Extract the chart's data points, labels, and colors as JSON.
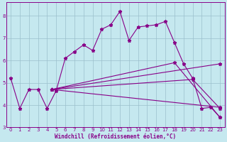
{
  "title": "",
  "xlabel": "Windchill (Refroidissement éolien,°C)",
  "ylabel": "",
  "bg_color": "#c5e8ef",
  "line_color": "#880088",
  "grid_color": "#9bbfcc",
  "xlim": [
    -0.5,
    23.5
  ],
  "ylim": [
    3.0,
    8.6
  ],
  "yticks": [
    3,
    4,
    5,
    6,
    7,
    8
  ],
  "xticks": [
    0,
    1,
    2,
    3,
    4,
    5,
    6,
    7,
    8,
    9,
    10,
    11,
    12,
    13,
    14,
    15,
    16,
    17,
    18,
    19,
    20,
    21,
    22,
    23
  ],
  "lines": [
    {
      "x": [
        0,
        1,
        2,
        3,
        4,
        5,
        6,
        7,
        8,
        9,
        10,
        11,
        12,
        13,
        14,
        15,
        16,
        17,
        18,
        19,
        20,
        21,
        22,
        23
      ],
      "y": [
        5.2,
        3.85,
        4.7,
        4.7,
        3.85,
        4.65,
        6.1,
        6.4,
        6.7,
        6.45,
        7.4,
        7.6,
        8.2,
        6.9,
        7.5,
        7.55,
        7.6,
        7.75,
        6.8,
        5.85,
        5.2,
        3.85,
        3.9,
        3.45
      ]
    },
    {
      "x": [
        4.5,
        23
      ],
      "y": [
        4.7,
        5.85
      ]
    },
    {
      "x": [
        4.5,
        23
      ],
      "y": [
        4.7,
        3.9
      ]
    },
    {
      "x": [
        4.5,
        20,
        23
      ],
      "y": [
        4.7,
        5.15,
        3.85
      ]
    },
    {
      "x": [
        4.5,
        18,
        23
      ],
      "y": [
        4.7,
        5.9,
        3.45
      ]
    }
  ]
}
